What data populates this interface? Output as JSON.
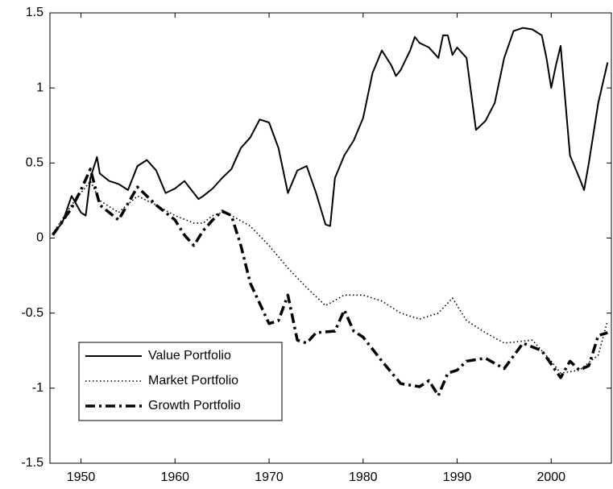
{
  "chart_data": {
    "type": "line",
    "xlim": [
      1946.7,
      2006.4
    ],
    "ylim": [
      -1.5,
      1.5
    ],
    "xticks": [
      1950,
      1960,
      1970,
      1980,
      1990,
      2000
    ],
    "yticks": [
      -1.5,
      -1,
      -0.5,
      0,
      0.5,
      1,
      1.5
    ],
    "legend": "lower left",
    "series": [
      {
        "name": "Value Portfolio",
        "color": "#000000",
        "dash": "solid",
        "x": [
          1947,
          1948,
          1949,
          1950,
          1950.5,
          1951,
          1951.7,
          1952,
          1953,
          1954,
          1955,
          1956,
          1957,
          1958,
          1959,
          1960,
          1961,
          1962,
          1962.5,
          1963,
          1964,
          1965,
          1966,
          1967,
          1968,
          1969,
          1970,
          1971,
          1972,
          1973,
          1974,
          1975,
          1976,
          1976.5,
          1977,
          1978,
          1979,
          1980,
          1981,
          1982,
          1983,
          1983.5,
          1984,
          1985,
          1985.5,
          1986,
          1987,
          1988,
          1988.5,
          1989,
          1989.5,
          1990,
          1991,
          1992,
          1993,
          1994,
          1995,
          1996,
          1997,
          1998,
          1999,
          1999.5,
          2000,
          2000.5,
          2001,
          2002,
          2003,
          2003.5,
          2004,
          2005,
          2006
        ],
        "values": [
          0.03,
          0.1,
          0.28,
          0.17,
          0.15,
          0.4,
          0.54,
          0.43,
          0.38,
          0.36,
          0.32,
          0.48,
          0.52,
          0.45,
          0.3,
          0.33,
          0.38,
          0.3,
          0.26,
          0.28,
          0.33,
          0.4,
          0.46,
          0.6,
          0.67,
          0.79,
          0.77,
          0.6,
          0.3,
          0.45,
          0.48,
          0.3,
          0.09,
          0.08,
          0.4,
          0.55,
          0.65,
          0.8,
          1.1,
          1.25,
          1.15,
          1.08,
          1.12,
          1.25,
          1.34,
          1.3,
          1.27,
          1.2,
          1.35,
          1.35,
          1.22,
          1.27,
          1.2,
          0.72,
          0.78,
          0.9,
          1.2,
          1.38,
          1.4,
          1.39,
          1.35,
          1.2,
          1.0,
          1.15,
          1.28,
          0.55,
          0.4,
          0.32,
          0.5,
          0.9,
          1.17
        ]
      },
      {
        "name": "Market Portfolio",
        "color": "#000000",
        "dash": "dotted",
        "x": [
          1947,
          1949,
          1951,
          1952,
          1954,
          1956,
          1958,
          1960,
          1962,
          1963,
          1964,
          1965,
          1966,
          1968,
          1970,
          1972,
          1974,
          1976,
          1978,
          1980,
          1982,
          1984,
          1986,
          1988,
          1989.5,
          1991,
          1993,
          1995,
          1998,
          2000,
          2001,
          2003,
          2005,
          2006
        ],
        "values": [
          0.03,
          0.22,
          0.38,
          0.25,
          0.17,
          0.28,
          0.22,
          0.15,
          0.1,
          0.1,
          0.15,
          0.17,
          0.15,
          0.08,
          -0.05,
          -0.2,
          -0.33,
          -0.45,
          -0.38,
          -0.38,
          -0.42,
          -0.5,
          -0.54,
          -0.5,
          -0.4,
          -0.55,
          -0.63,
          -0.7,
          -0.68,
          -0.82,
          -0.9,
          -0.88,
          -0.78,
          -0.55
        ]
      },
      {
        "name": "Growth Portfolio",
        "color": "#000000",
        "dash": "dashdot",
        "x": [
          1947,
          1949,
          1950,
          1951,
          1952,
          1954,
          1956,
          1958,
          1960,
          1961,
          1962,
          1963,
          1964,
          1965,
          1966,
          1967,
          1968,
          1970,
          1971,
          1972,
          1973,
          1974,
          1975,
          1977,
          1978,
          1979,
          1980,
          1982,
          1984,
          1985,
          1986,
          1987,
          1988,
          1989,
          1990,
          1991,
          1993,
          1995,
          1997,
          1999,
          2001,
          2002,
          2003,
          2004,
          2005,
          2006
        ],
        "values": [
          0.02,
          0.2,
          0.32,
          0.46,
          0.22,
          0.12,
          0.34,
          0.22,
          0.12,
          0.02,
          -0.05,
          0.05,
          0.12,
          0.18,
          0.15,
          -0.05,
          -0.3,
          -0.57,
          -0.55,
          -0.38,
          -0.68,
          -0.7,
          -0.63,
          -0.62,
          -0.48,
          -0.62,
          -0.66,
          -0.82,
          -0.97,
          -0.98,
          -0.99,
          -0.95,
          -1.05,
          -0.9,
          -0.88,
          -0.82,
          -0.8,
          -0.87,
          -0.7,
          -0.75,
          -0.93,
          -0.82,
          -0.88,
          -0.85,
          -0.65,
          -0.63
        ]
      }
    ]
  }
}
